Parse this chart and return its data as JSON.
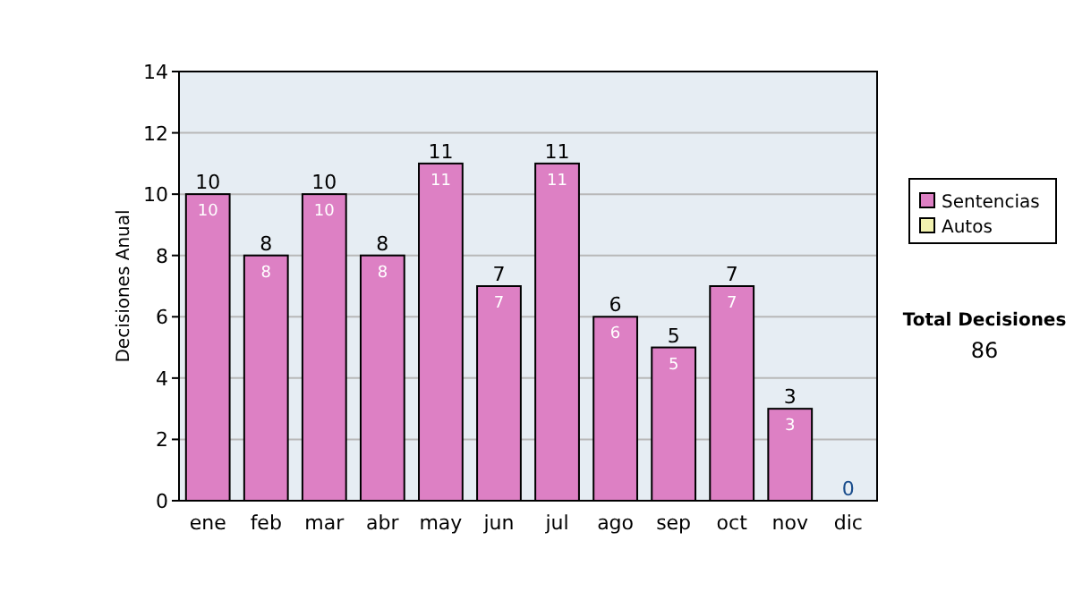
{
  "chart_data": {
    "type": "bar",
    "ylabel": "Decisiones Anual",
    "categories": [
      "ene",
      "feb",
      "mar",
      "abr",
      "may",
      "jun",
      "jul",
      "ago",
      "sep",
      "oct",
      "nov",
      "dic"
    ],
    "series": [
      {
        "name": "Sentencias",
        "color": "#dd80c4",
        "values": [
          10,
          8,
          10,
          8,
          11,
          7,
          11,
          6,
          5,
          7,
          3,
          0
        ],
        "value_labels": [
          "10",
          "8",
          "10",
          "8",
          "11",
          "7",
          "11",
          "6",
          "5",
          "7",
          "3",
          null
        ]
      },
      {
        "name": "Autos",
        "color": "#f2f2b0",
        "values": [
          0,
          0,
          0,
          0,
          0,
          0,
          0,
          0,
          0,
          0,
          0,
          0
        ]
      }
    ],
    "stacked": true,
    "totals": [
      "10",
      "8",
      "10",
      "8",
      "11",
      "7",
      "11",
      "6",
      "5",
      "7",
      "3",
      "0"
    ],
    "ylim": [
      0,
      14
    ],
    "yticks": [
      0,
      2,
      4,
      6,
      8,
      10,
      12,
      14
    ],
    "grid": "y",
    "legend": "right",
    "annotations": [
      "Total Decisiones",
      "86"
    ]
  }
}
